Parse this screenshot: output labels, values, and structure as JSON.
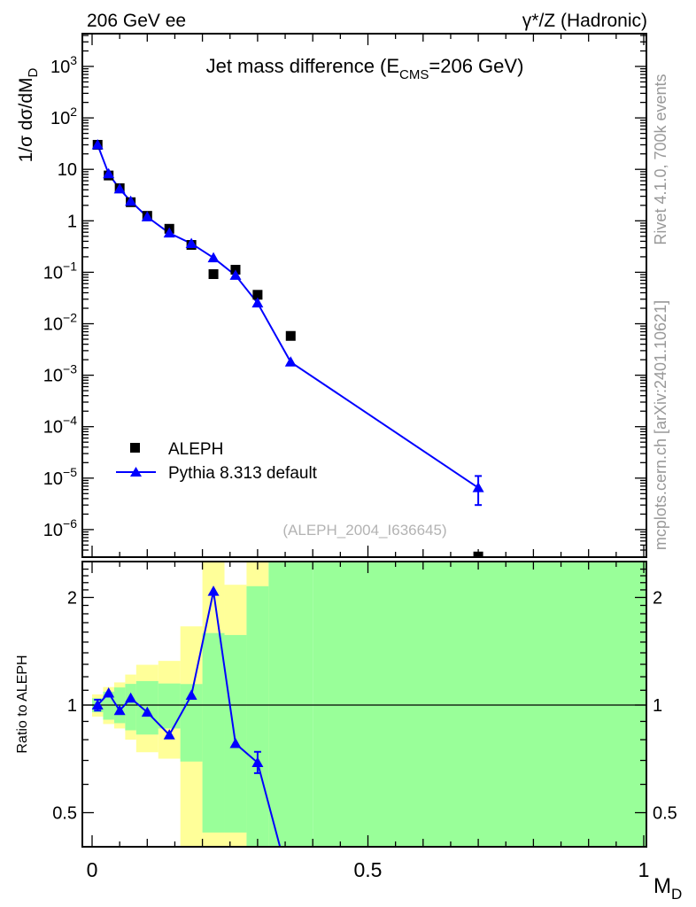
{
  "labels": {
    "header_left": "206 GeV ee",
    "header_right": "γ*/Z (Hadronic)",
    "title_pre": "Jet mass difference (E",
    "title_sub": "CMS",
    "title_post": "=206 GeV)",
    "ylabel_pre": "1/σ  dσ/dM",
    "ylabel_sub": "D",
    "xlabel_pre": "M",
    "xlabel_sub": "D",
    "ratio_ylabel": "Ratio to ALEPH",
    "watermark": "(ALEPH_2004_I636645)",
    "side_top": "Rivet 4.1.0,  700k events",
    "side_bottom": "mcplots.cern.ch [arXiv:2401.10621]"
  },
  "legend": {
    "entries": [
      {
        "label": "ALEPH",
        "marker": "square",
        "color": "#000000"
      },
      {
        "label": "Pythia 8.313 default",
        "marker": "triangle",
        "color": "#0000ff"
      }
    ]
  },
  "colors": {
    "mc_line": "#0000ff",
    "data_marker": "#000000",
    "band_yellow": "#ffff99",
    "band_green": "#99ff99",
    "side_text": "#999999",
    "watermark": "#b3b3b3"
  },
  "chart_data": [
    {
      "type": "line",
      "panel": "main",
      "title": "Jet mass difference (E_CMS=206 GeV)",
      "xlabel": "M_D",
      "ylabel": "1/σ dσ/dM_D",
      "yscale": "log",
      "xlim": [
        -0.018,
        1.01
      ],
      "ylim": [
        2.8e-07,
        4300
      ],
      "x": [
        0.01,
        0.03,
        0.05,
        0.07,
        0.1,
        0.14,
        0.18,
        0.22,
        0.26,
        0.3,
        0.36,
        0.7
      ],
      "series": [
        {
          "name": "ALEPH",
          "marker": "square",
          "color": "#000000",
          "line": false,
          "values": [
            30,
            7.6,
            4.3,
            2.3,
            1.25,
            0.7,
            0.34,
            0.092,
            0.112,
            0.0365,
            0.0058,
            3e-07
          ]
        },
        {
          "name": "Pythia 8.313 default",
          "marker": "triangle",
          "color": "#0000ff",
          "line": true,
          "values": [
            30,
            8.2,
            4.15,
            2.4,
            1.19,
            0.578,
            0.362,
            0.191,
            0.087,
            0.0252,
            0.0018,
            6.5e-06
          ],
          "errors": {
            "11": [
              3e-06,
              1.1e-05
            ]
          }
        }
      ],
      "yticks": [
        {
          "v": 1000,
          "base": "10",
          "exp": "3"
        },
        {
          "v": 100,
          "base": "10",
          "exp": "2"
        },
        {
          "v": 10,
          "base": "10",
          "exp": ""
        },
        {
          "v": 1,
          "base": "1",
          "exp": ""
        },
        {
          "v": 0.1,
          "base": "10",
          "exp": "−1"
        },
        {
          "v": 0.01,
          "base": "10",
          "exp": "−2"
        },
        {
          "v": 0.001,
          "base": "10",
          "exp": "−3"
        },
        {
          "v": 0.0001,
          "base": "10",
          "exp": "−4"
        },
        {
          "v": 1e-05,
          "base": "10",
          "exp": "−5"
        },
        {
          "v": 1e-06,
          "base": "10",
          "exp": "−6"
        }
      ],
      "xticks": [
        {
          "v": 0,
          "label": "0"
        },
        {
          "v": 0.5,
          "label": "0.5"
        },
        {
          "v": 1,
          "label": "1"
        }
      ]
    },
    {
      "type": "ratio",
      "panel": "ratio",
      "ylabel": "Ratio to ALEPH",
      "yscale": "log",
      "ylim": [
        0.403,
        2.52
      ],
      "reference_line": 1,
      "bin_edges": [
        0,
        0.02,
        0.04,
        0.06,
        0.08,
        0.12,
        0.16,
        0.2,
        0.24,
        0.28,
        0.32,
        0.4,
        1.01
      ],
      "bands": {
        "yellow": [
          [
            0.928,
            1.071
          ],
          [
            0.885,
            1.123
          ],
          [
            0.86,
            1.157
          ],
          [
            0.8,
            1.217
          ],
          [
            0.738,
            1.296
          ],
          [
            0.708,
            1.329
          ],
          [
            0.4,
            1.66
          ],
          [
            0.4,
            2.52
          ],
          [
            0.4,
            2.17
          ],
          [
            0.4,
            2.52
          ],
          null,
          null
        ],
        "green": [
          [
            0.955,
            1.045
          ],
          [
            0.91,
            1.09
          ],
          [
            0.89,
            1.12
          ],
          [
            0.85,
            1.146
          ],
          [
            0.827,
            1.167
          ],
          [
            0.86,
            1.149
          ],
          [
            0.695,
            1.145
          ],
          [
            0.44,
            1.59
          ],
          [
            0.44,
            1.57
          ],
          [
            0.4,
            2.15
          ],
          [
            0.4,
            2.52
          ],
          [
            0.4,
            2.52
          ]
        ]
      },
      "x": [
        0.01,
        0.03,
        0.05,
        0.07,
        0.1,
        0.14,
        0.18,
        0.22,
        0.26,
        0.3,
        0.36
      ],
      "values": [
        1.0,
        1.08,
        0.965,
        1.045,
        0.955,
        0.825,
        1.065,
        2.08,
        0.78,
        0.69,
        0.31
      ],
      "errors": {
        "0": [
          0.965,
          1.035
        ],
        "9": [
          0.645,
          0.74
        ]
      },
      "yticks": [
        {
          "v": 2,
          "label": "2"
        },
        {
          "v": 1,
          "label": "1"
        },
        {
          "v": 0.5,
          "label": "0.5"
        }
      ],
      "xticks": [
        {
          "v": 0,
          "label": "0"
        },
        {
          "v": 0.5,
          "label": "0.5"
        },
        {
          "v": 1,
          "label": "1"
        }
      ]
    }
  ]
}
